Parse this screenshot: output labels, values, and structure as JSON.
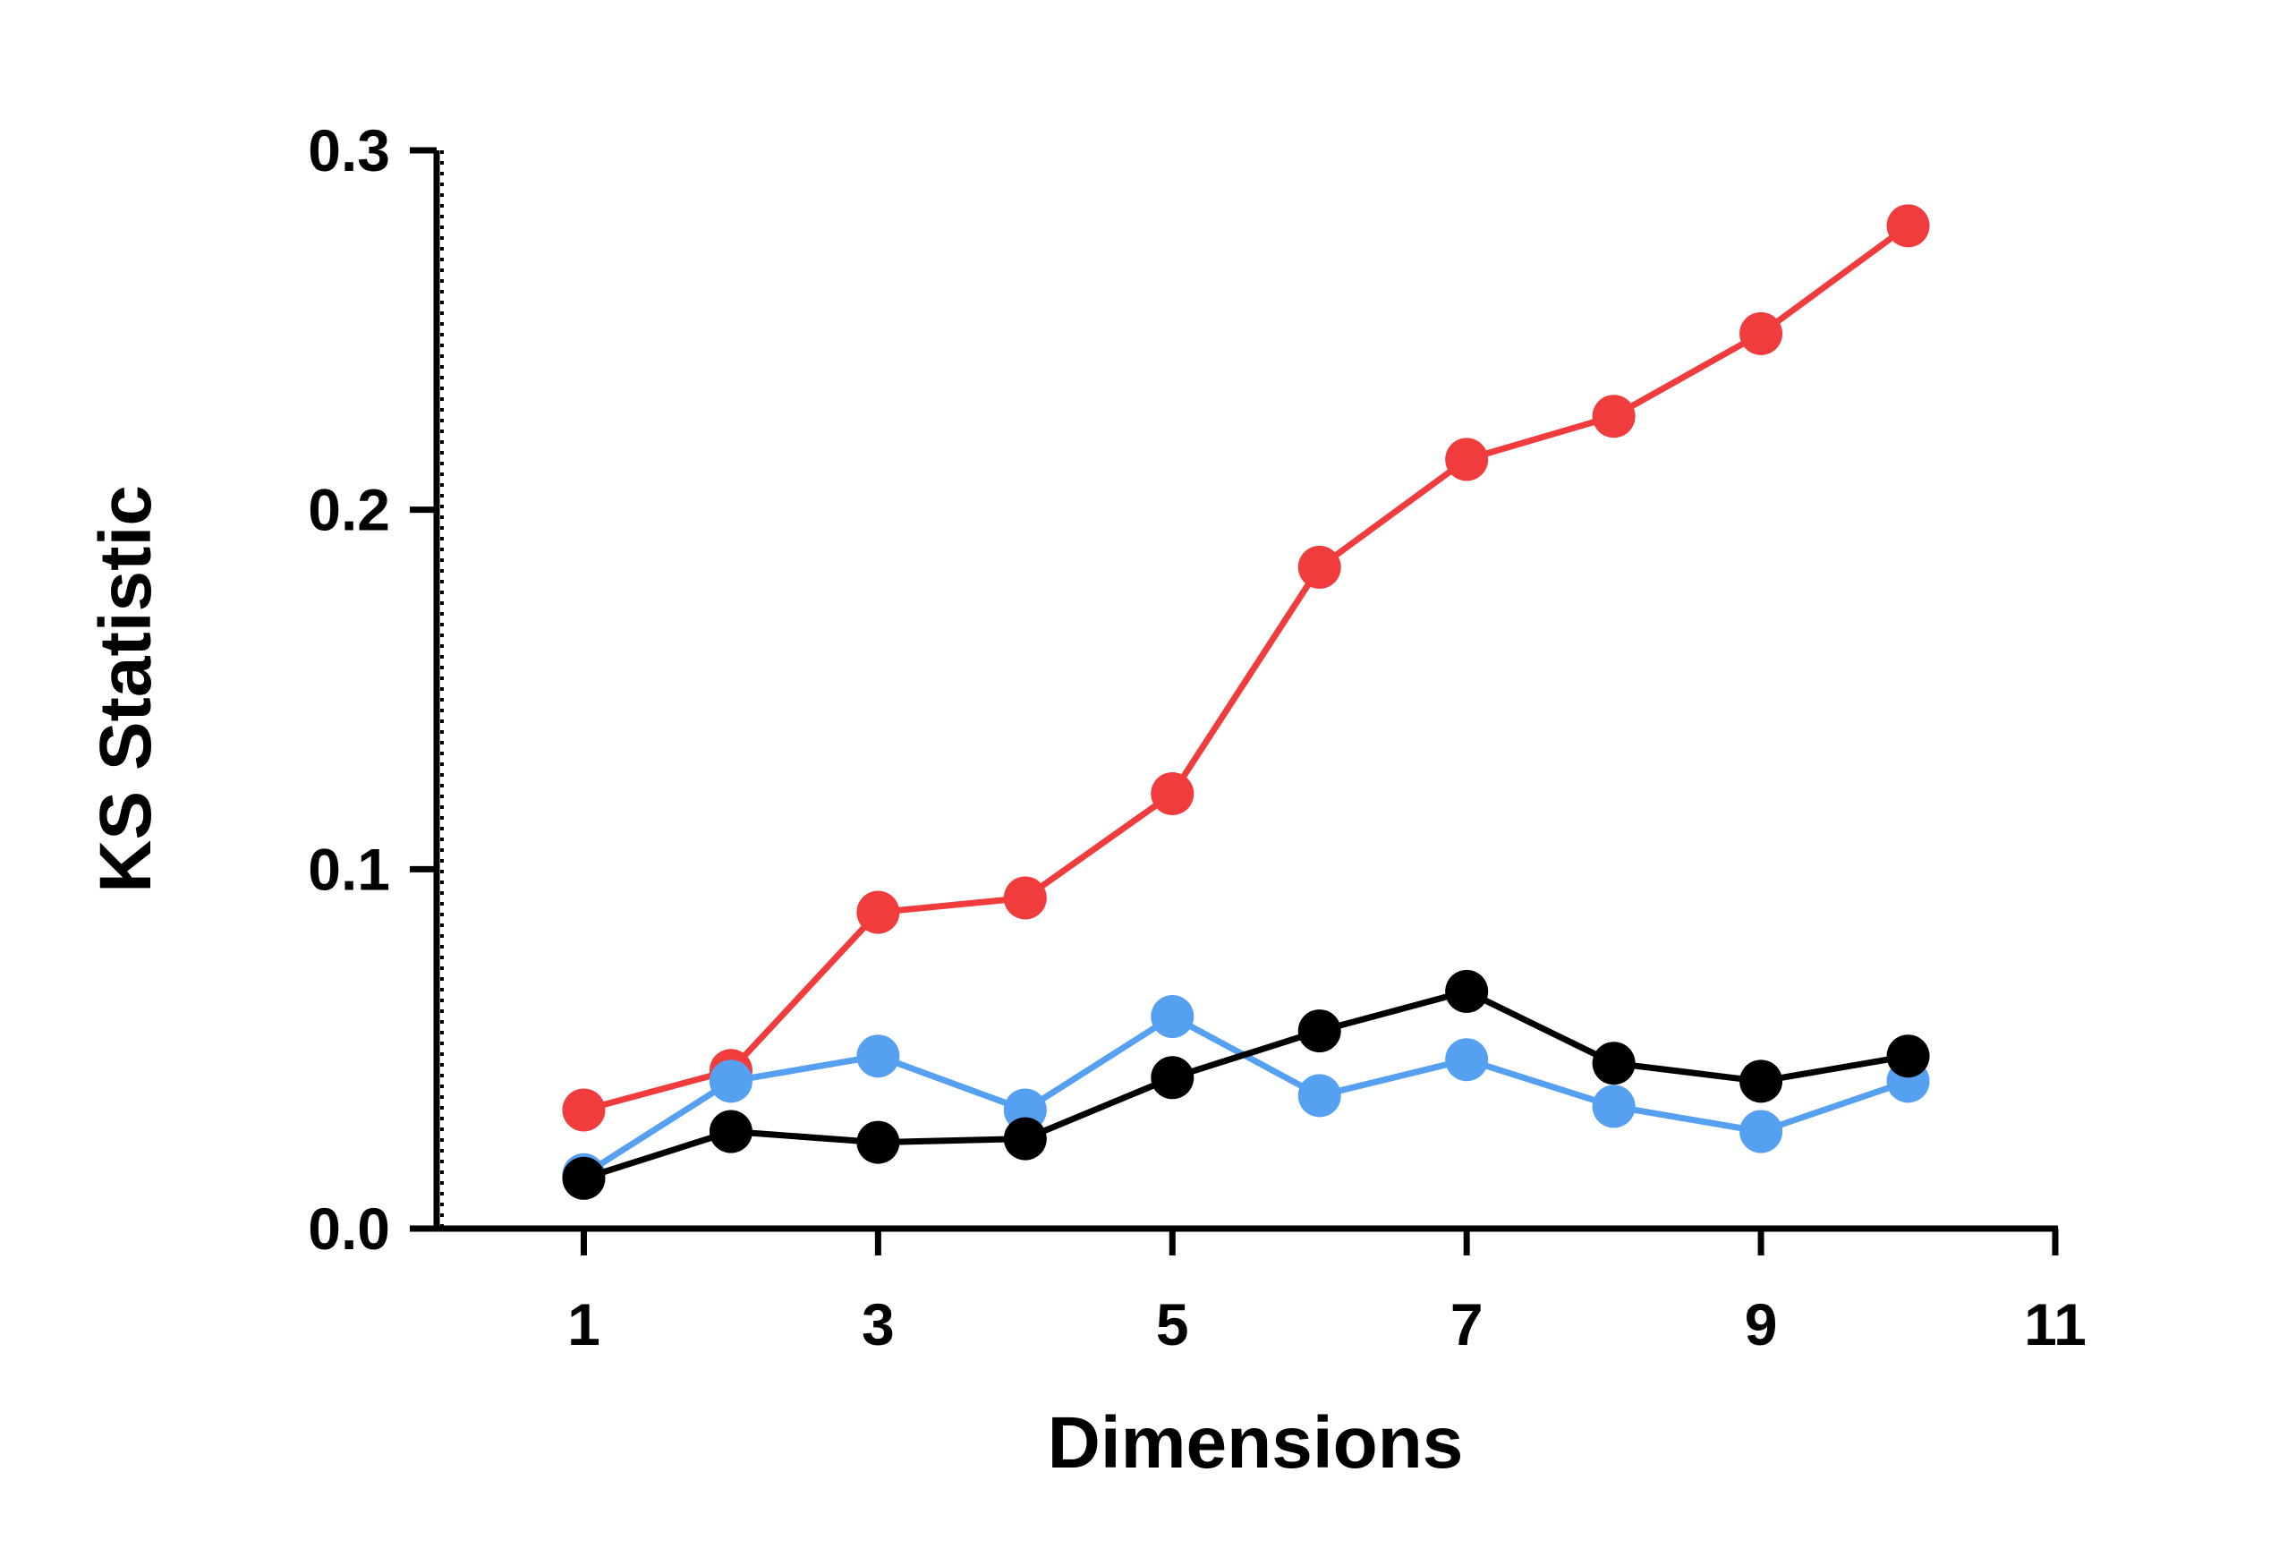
{
  "chart_data": {
    "type": "line",
    "title": "",
    "xlabel": "Dimensions",
    "ylabel": "KS Statistic",
    "xlim": [
      0,
      11
    ],
    "ylim": [
      0,
      0.3
    ],
    "x_ticks": [
      1,
      3,
      5,
      7,
      9,
      11
    ],
    "x_tick_labels": [
      "1",
      "3",
      "5",
      "7",
      "9",
      "11"
    ],
    "y_ticks": [
      0,
      0.1,
      0.2,
      0.3
    ],
    "y_tick_labels": [
      "0.0",
      "0.1",
      "0.2",
      "0.3"
    ],
    "grid": false,
    "legend": "none",
    "x": [
      1,
      2,
      3,
      4,
      5,
      6,
      7,
      8,
      9,
      10
    ],
    "series": [
      {
        "color": "#f03c3c",
        "values": [
          0.033,
          0.044,
          0.088,
          0.092,
          0.121,
          0.184,
          0.214,
          0.226,
          0.249,
          0.279
        ]
      },
      {
        "color": "#55a0f0",
        "values": [
          0.015,
          0.041,
          0.048,
          0.033,
          0.059,
          0.037,
          0.047,
          0.034,
          0.027,
          0.041
        ]
      },
      {
        "color": "#000000",
        "values": [
          0.014,
          0.027,
          0.024,
          0.025,
          0.042,
          0.055,
          0.066,
          0.046,
          0.041,
          0.048
        ]
      }
    ]
  }
}
